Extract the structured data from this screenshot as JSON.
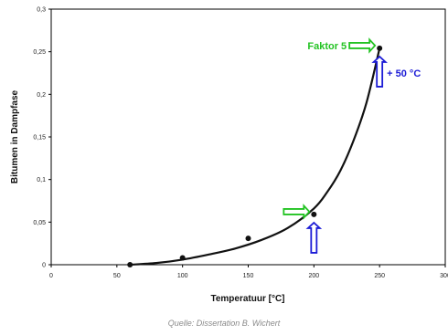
{
  "chart_data": {
    "type": "scatter",
    "xlabel": "Temperatuur [°C]",
    "ylabel": "Bitumen in Dampfase",
    "xlim": [
      0,
      300
    ],
    "ylim": [
      0,
      0.3
    ],
    "x_ticks": [
      0,
      50,
      100,
      150,
      200,
      250,
      300
    ],
    "x_tick_labels": [
      "0",
      "50",
      "100",
      "150",
      "200",
      "250",
      "300"
    ],
    "y_ticks": [
      0,
      0.05,
      0.1,
      0.15,
      0.2,
      0.25,
      0.3
    ],
    "y_tick_labels": [
      "0",
      "0,05",
      "0,1",
      "0,15",
      "0,2",
      "0,25",
      "0,3"
    ],
    "grid": false,
    "series": [
      {
        "kind": "points",
        "x": [
          60,
          100,
          150,
          200,
          250
        ],
        "y": [
          0.0,
          0.008,
          0.031,
          0.059,
          0.254
        ]
      },
      {
        "kind": "trendline",
        "x": [
          60,
          80,
          100,
          120,
          140,
          160,
          180,
          200,
          210,
          220,
          230,
          240,
          250
        ],
        "y": [
          0.0,
          0.002,
          0.006,
          0.012,
          0.019,
          0.029,
          0.043,
          0.066,
          0.085,
          0.11,
          0.145,
          0.19,
          0.254
        ]
      }
    ],
    "annotations": [
      {
        "text": "Faktor 5",
        "color": "#22c322",
        "style": "green-arrow-right",
        "x": 250,
        "y": 0.254
      },
      {
        "text": "+ 50 °C",
        "color": "#1c1cd6",
        "style": "blue-arrow-up",
        "x": 250,
        "y": 0.254
      },
      {
        "text": "",
        "color": "#22c322",
        "style": "green-arrow-right",
        "x": 200,
        "y": 0.059
      },
      {
        "text": "",
        "color": "#1c1cd6",
        "style": "blue-arrow-up",
        "x": 200,
        "y": 0.059
      }
    ],
    "colors": {
      "points": "#111111",
      "line": "#111111",
      "green_arrow": "#22c322",
      "blue_arrow": "#1c1cd6"
    }
  },
  "source_note": "Quelle: Dissertation B. Wichert"
}
